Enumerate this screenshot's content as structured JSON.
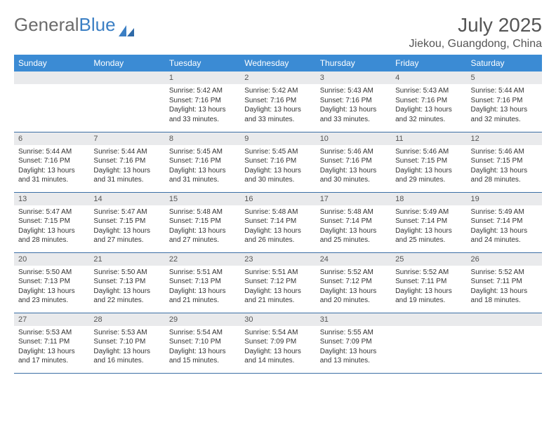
{
  "logo": {
    "text_a": "General",
    "text_b": "Blue"
  },
  "title": "July 2025",
  "location": "Jiekou, Guangdong, China",
  "colors": {
    "header_bg": "#3b8bd4",
    "header_fg": "#ffffff",
    "daynum_bg": "#e9eaec",
    "row_border": "#3b6ea5",
    "logo_gray": "#6b6b6b",
    "logo_blue": "#3b7fc4"
  },
  "day_headers": [
    "Sunday",
    "Monday",
    "Tuesday",
    "Wednesday",
    "Thursday",
    "Friday",
    "Saturday"
  ],
  "weeks": [
    [
      {
        "n": "",
        "lines": []
      },
      {
        "n": "",
        "lines": []
      },
      {
        "n": "1",
        "lines": [
          "Sunrise: 5:42 AM",
          "Sunset: 7:16 PM",
          "Daylight: 13 hours",
          "and 33 minutes."
        ]
      },
      {
        "n": "2",
        "lines": [
          "Sunrise: 5:42 AM",
          "Sunset: 7:16 PM",
          "Daylight: 13 hours",
          "and 33 minutes."
        ]
      },
      {
        "n": "3",
        "lines": [
          "Sunrise: 5:43 AM",
          "Sunset: 7:16 PM",
          "Daylight: 13 hours",
          "and 33 minutes."
        ]
      },
      {
        "n": "4",
        "lines": [
          "Sunrise: 5:43 AM",
          "Sunset: 7:16 PM",
          "Daylight: 13 hours",
          "and 32 minutes."
        ]
      },
      {
        "n": "5",
        "lines": [
          "Sunrise: 5:44 AM",
          "Sunset: 7:16 PM",
          "Daylight: 13 hours",
          "and 32 minutes."
        ]
      }
    ],
    [
      {
        "n": "6",
        "lines": [
          "Sunrise: 5:44 AM",
          "Sunset: 7:16 PM",
          "Daylight: 13 hours",
          "and 31 minutes."
        ]
      },
      {
        "n": "7",
        "lines": [
          "Sunrise: 5:44 AM",
          "Sunset: 7:16 PM",
          "Daylight: 13 hours",
          "and 31 minutes."
        ]
      },
      {
        "n": "8",
        "lines": [
          "Sunrise: 5:45 AM",
          "Sunset: 7:16 PM",
          "Daylight: 13 hours",
          "and 31 minutes."
        ]
      },
      {
        "n": "9",
        "lines": [
          "Sunrise: 5:45 AM",
          "Sunset: 7:16 PM",
          "Daylight: 13 hours",
          "and 30 minutes."
        ]
      },
      {
        "n": "10",
        "lines": [
          "Sunrise: 5:46 AM",
          "Sunset: 7:16 PM",
          "Daylight: 13 hours",
          "and 30 minutes."
        ]
      },
      {
        "n": "11",
        "lines": [
          "Sunrise: 5:46 AM",
          "Sunset: 7:15 PM",
          "Daylight: 13 hours",
          "and 29 minutes."
        ]
      },
      {
        "n": "12",
        "lines": [
          "Sunrise: 5:46 AM",
          "Sunset: 7:15 PM",
          "Daylight: 13 hours",
          "and 28 minutes."
        ]
      }
    ],
    [
      {
        "n": "13",
        "lines": [
          "Sunrise: 5:47 AM",
          "Sunset: 7:15 PM",
          "Daylight: 13 hours",
          "and 28 minutes."
        ]
      },
      {
        "n": "14",
        "lines": [
          "Sunrise: 5:47 AM",
          "Sunset: 7:15 PM",
          "Daylight: 13 hours",
          "and 27 minutes."
        ]
      },
      {
        "n": "15",
        "lines": [
          "Sunrise: 5:48 AM",
          "Sunset: 7:15 PM",
          "Daylight: 13 hours",
          "and 27 minutes."
        ]
      },
      {
        "n": "16",
        "lines": [
          "Sunrise: 5:48 AM",
          "Sunset: 7:14 PM",
          "Daylight: 13 hours",
          "and 26 minutes."
        ]
      },
      {
        "n": "17",
        "lines": [
          "Sunrise: 5:48 AM",
          "Sunset: 7:14 PM",
          "Daylight: 13 hours",
          "and 25 minutes."
        ]
      },
      {
        "n": "18",
        "lines": [
          "Sunrise: 5:49 AM",
          "Sunset: 7:14 PM",
          "Daylight: 13 hours",
          "and 25 minutes."
        ]
      },
      {
        "n": "19",
        "lines": [
          "Sunrise: 5:49 AM",
          "Sunset: 7:14 PM",
          "Daylight: 13 hours",
          "and 24 minutes."
        ]
      }
    ],
    [
      {
        "n": "20",
        "lines": [
          "Sunrise: 5:50 AM",
          "Sunset: 7:13 PM",
          "Daylight: 13 hours",
          "and 23 minutes."
        ]
      },
      {
        "n": "21",
        "lines": [
          "Sunrise: 5:50 AM",
          "Sunset: 7:13 PM",
          "Daylight: 13 hours",
          "and 22 minutes."
        ]
      },
      {
        "n": "22",
        "lines": [
          "Sunrise: 5:51 AM",
          "Sunset: 7:13 PM",
          "Daylight: 13 hours",
          "and 21 minutes."
        ]
      },
      {
        "n": "23",
        "lines": [
          "Sunrise: 5:51 AM",
          "Sunset: 7:12 PM",
          "Daylight: 13 hours",
          "and 21 minutes."
        ]
      },
      {
        "n": "24",
        "lines": [
          "Sunrise: 5:52 AM",
          "Sunset: 7:12 PM",
          "Daylight: 13 hours",
          "and 20 minutes."
        ]
      },
      {
        "n": "25",
        "lines": [
          "Sunrise: 5:52 AM",
          "Sunset: 7:11 PM",
          "Daylight: 13 hours",
          "and 19 minutes."
        ]
      },
      {
        "n": "26",
        "lines": [
          "Sunrise: 5:52 AM",
          "Sunset: 7:11 PM",
          "Daylight: 13 hours",
          "and 18 minutes."
        ]
      }
    ],
    [
      {
        "n": "27",
        "lines": [
          "Sunrise: 5:53 AM",
          "Sunset: 7:11 PM",
          "Daylight: 13 hours",
          "and 17 minutes."
        ]
      },
      {
        "n": "28",
        "lines": [
          "Sunrise: 5:53 AM",
          "Sunset: 7:10 PM",
          "Daylight: 13 hours",
          "and 16 minutes."
        ]
      },
      {
        "n": "29",
        "lines": [
          "Sunrise: 5:54 AM",
          "Sunset: 7:10 PM",
          "Daylight: 13 hours",
          "and 15 minutes."
        ]
      },
      {
        "n": "30",
        "lines": [
          "Sunrise: 5:54 AM",
          "Sunset: 7:09 PM",
          "Daylight: 13 hours",
          "and 14 minutes."
        ]
      },
      {
        "n": "31",
        "lines": [
          "Sunrise: 5:55 AM",
          "Sunset: 7:09 PM",
          "Daylight: 13 hours",
          "and 13 minutes."
        ]
      },
      {
        "n": "",
        "lines": []
      },
      {
        "n": "",
        "lines": []
      }
    ]
  ]
}
